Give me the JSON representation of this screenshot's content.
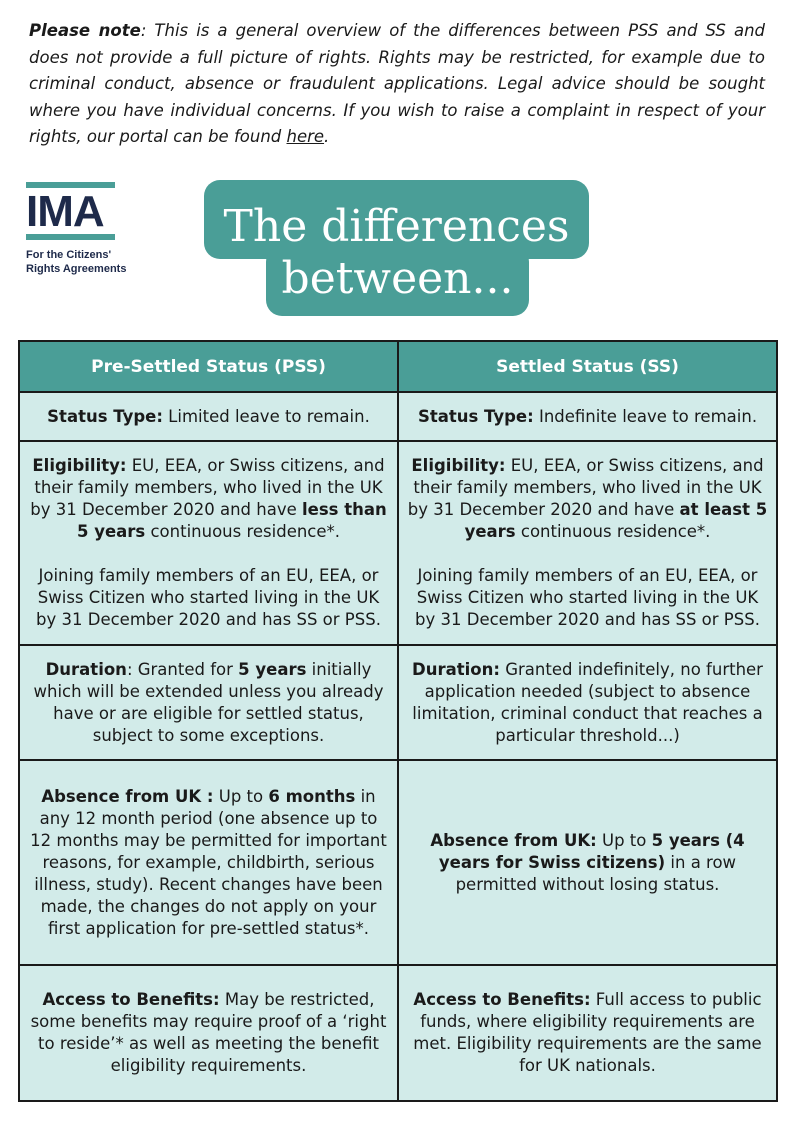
{
  "note": {
    "lead": "Please note",
    "body": ": This is a general overview of the differences between PSS and SS and does not provide a full picture of rights. Rights may be restricted, for example due to criminal conduct, absence or fraudulent applications. Legal advice should be sought where you have individual concerns. If you wish to raise a complaint in respect of your rights, our portal can be found ",
    "link": "here",
    "end": "."
  },
  "logo": {
    "letters": "IMA",
    "tagline_1": "For the Citizens'",
    "tagline_2": "Rights Agreements"
  },
  "title": {
    "line1": "The differences",
    "line2": "between..."
  },
  "colors": {
    "teal": "#4a9e97",
    "cell_bg": "#d2ebe9",
    "navy": "#1e2a4a"
  },
  "table": {
    "headers": [
      "Pre-Settled Status (PSS)",
      "Settled Status (SS)"
    ],
    "status_type": {
      "label": "Status Type:",
      "pss": " Limited leave to remain.",
      "ss": " Indefinite leave to remain."
    },
    "eligibility": {
      "label": "Eligibility:",
      "pss_a": " EU, EEA, or Swiss citizens, and their family members, who lived in the UK by 31 December 2020 and have ",
      "pss_bold": "less than 5 years",
      "pss_b": " continuous residence*.",
      "pss_joining": "Joining family members of an EU, EEA, or Swiss Citizen who started living in the UK by 31 December 2020 and has SS or PSS.",
      "ss_a": " EU, EEA, or Swiss citizens, and their family members, who lived in the UK by 31 December 2020 and have ",
      "ss_bold": "at least 5 years",
      "ss_b": " continuous residence*.",
      "ss_joining": "Joining family members of an EU, EEA, or Swiss Citizen who started living in the UK by 31 December 2020 and has SS or PSS."
    },
    "duration": {
      "pss_label": "Duration",
      "pss_a": ": Granted for ",
      "pss_bold": "5 years",
      "pss_b": " initially which will be extended unless you already have or are eligible for settled status, subject to some exceptions.",
      "ss_label": "Duration:",
      "ss_text": " Granted indefinitely, no further application needed (subject to absence limitation, criminal conduct that reaches a particular threshold...)"
    },
    "absence": {
      "pss_label": "Absence from UK :",
      "pss_a": " Up to ",
      "pss_bold": "6 months",
      "pss_b": " in any 12 month period (one absence up to 12 months may be permitted for important reasons, for example, childbirth, serious illness, study). Recent changes have been made, the changes do not apply on your first application for pre-settled status*.",
      "ss_label": "Absence from UK:",
      "ss_a": " Up to ",
      "ss_bold": "5 years (4 years for Swiss citizens)",
      "ss_b": " in a row permitted without losing status."
    },
    "benefits": {
      "label": "Access to Benefits:",
      "pss": " May be restricted, some benefits may require proof of a ‘right to reside’* as well as meeting the benefit eligibility requirements.",
      "ss": " Full access to public funds, where eligibility requirements are met. Eligibility requirements are the same for UK nationals."
    }
  }
}
